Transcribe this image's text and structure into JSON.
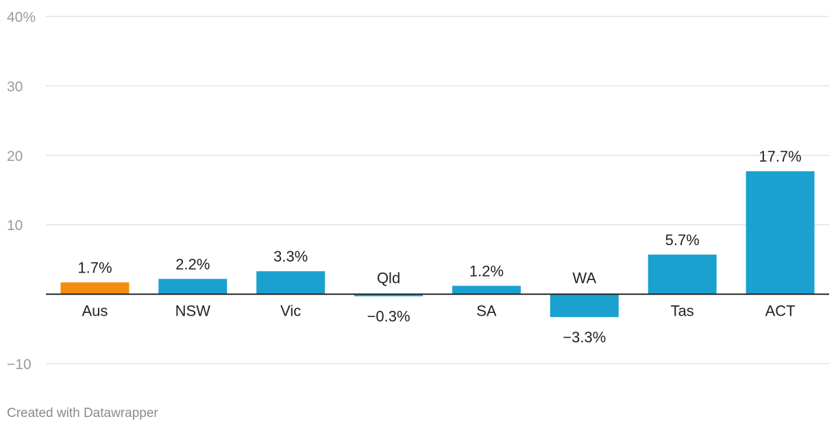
{
  "chart_data": {
    "type": "bar",
    "categories": [
      "Aus",
      "NSW",
      "Vic",
      "Qld",
      "SA",
      "WA",
      "Tas",
      "ACT"
    ],
    "values": [
      1.7,
      2.2,
      3.3,
      -0.3,
      1.2,
      -3.3,
      5.7,
      17.7
    ],
    "value_labels": [
      "1.7%",
      "2.2%",
      "3.3%",
      "−0.3%",
      "1.2%",
      "−3.3%",
      "5.7%",
      "17.7%"
    ],
    "bar_colors": [
      "#f28e0f",
      "#1aa1d0",
      "#1aa1d0",
      "#1aa1d0",
      "#1aa1d0",
      "#1aa1d0",
      "#1aa1d0",
      "#1aa1d0"
    ],
    "yticks": [
      40,
      30,
      20,
      10,
      -10
    ],
    "ytick_labels": [
      "40%",
      "30",
      "20",
      "10",
      "−10"
    ],
    "ylim": [
      -10,
      40
    ],
    "grid": true,
    "legend": "none"
  },
  "footer": {
    "credit": "Created with Datawrapper"
  },
  "colors": {
    "highlight": "#f28e0f",
    "bar": "#1aa1d0",
    "grid": "#e3e3e3",
    "tick_text": "#9a9a9a"
  }
}
